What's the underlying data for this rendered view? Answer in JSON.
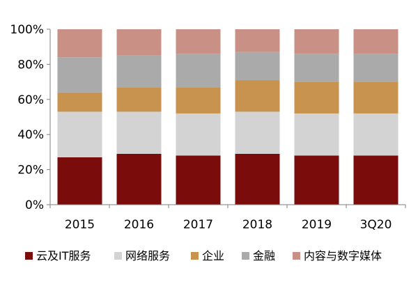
{
  "chart_data": {
    "type": "bar",
    "stacked": true,
    "categories": [
      "2015",
      "2016",
      "2017",
      "2018",
      "2019",
      "3Q20"
    ],
    "y_ticks": [
      "0%",
      "20%",
      "40%",
      "60%",
      "80%",
      "100%"
    ],
    "ylim": [
      0,
      100
    ],
    "grid": false,
    "legend_position": "bottom",
    "series": [
      {
        "name": "云及IT服务",
        "color": "#7B0C0C",
        "values": [
          27,
          29,
          28,
          29,
          28,
          28
        ]
      },
      {
        "name": "网络服务",
        "color": "#D3D3D3",
        "values": [
          26,
          24,
          24,
          24,
          24,
          24
        ]
      },
      {
        "name": "企业",
        "color": "#C8924F",
        "values": [
          11,
          14,
          15,
          18,
          18,
          18
        ]
      },
      {
        "name": "金融",
        "color": "#AAAAAA",
        "values": [
          20,
          18,
          19,
          16,
          16,
          16
        ]
      },
      {
        "name": "内容与数字媒体",
        "color": "#C99185",
        "values": [
          16,
          15,
          14,
          13,
          14,
          14
        ]
      }
    ]
  }
}
